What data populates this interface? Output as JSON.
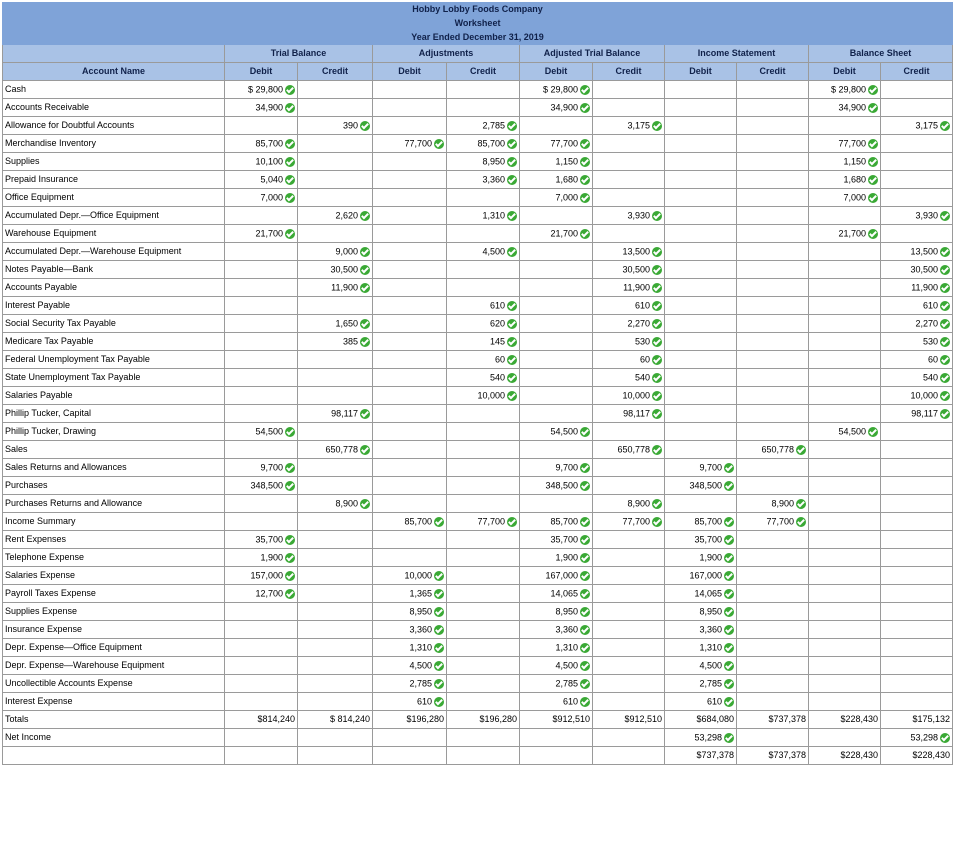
{
  "header": {
    "company": "Hobby Lobby Foods Company",
    "title": "Worksheet",
    "period": "Year Ended December 31, 2019",
    "account_col": "Account Name",
    "groups": [
      "Trial Balance",
      "Adjustments",
      "Adjusted Trial Balance",
      "Income Statement",
      "Balance Sheet"
    ],
    "debit": "Debit",
    "credit": "Credit"
  },
  "rows": [
    {
      "name": "Cash",
      "v": [
        "$ 29,800",
        "",
        "",
        "",
        "$ 29,800",
        "",
        "",
        "",
        "$ 29,800",
        ""
      ]
    },
    {
      "name": "Accounts Receivable",
      "v": [
        "34,900",
        "",
        "",
        "",
        "34,900",
        "",
        "",
        "",
        "34,900",
        ""
      ]
    },
    {
      "name": "Allowance for Doubtful Accounts",
      "v": [
        "",
        "390",
        "",
        "2,785",
        "",
        "3,175",
        "",
        "",
        "",
        "3,175"
      ]
    },
    {
      "name": "Merchandise Inventory",
      "v": [
        "85,700",
        "",
        "77,700",
        "85,700",
        "77,700",
        "",
        "",
        "",
        "77,700",
        ""
      ]
    },
    {
      "name": "Supplies",
      "v": [
        "10,100",
        "",
        "",
        "8,950",
        "1,150",
        "",
        "",
        "",
        "1,150",
        ""
      ]
    },
    {
      "name": "Prepaid Insurance",
      "v": [
        "5,040",
        "",
        "",
        "3,360",
        "1,680",
        "",
        "",
        "",
        "1,680",
        ""
      ]
    },
    {
      "name": "Office Equipment",
      "v": [
        "7,000",
        "",
        "",
        "",
        "7,000",
        "",
        "",
        "",
        "7,000",
        ""
      ]
    },
    {
      "name": "Accumulated Depr.—Office Equipment",
      "tall": true,
      "v": [
        "",
        "2,620",
        "",
        "1,310",
        "",
        "3,930",
        "",
        "",
        "",
        "3,930"
      ]
    },
    {
      "name": "Warehouse Equipment",
      "v": [
        "21,700",
        "",
        "",
        "",
        "21,700",
        "",
        "",
        "",
        "21,700",
        ""
      ]
    },
    {
      "name": "Accumulated Depr.—Warehouse Equipment",
      "tall": true,
      "v": [
        "",
        "9,000",
        "",
        "4,500",
        "",
        "13,500",
        "",
        "",
        "",
        "13,500"
      ]
    },
    {
      "name": "Notes Payable—Bank",
      "v": [
        "",
        "30,500",
        "",
        "",
        "",
        "30,500",
        "",
        "",
        "",
        "30,500"
      ]
    },
    {
      "name": "Accounts Payable",
      "v": [
        "",
        "11,900",
        "",
        "",
        "",
        "11,900",
        "",
        "",
        "",
        "11,900"
      ]
    },
    {
      "name": "Interest Payable",
      "v": [
        "",
        "",
        "",
        "610",
        "",
        "610",
        "",
        "",
        "",
        "610"
      ]
    },
    {
      "name": "Social Security Tax Payable",
      "v": [
        "",
        "1,650",
        "",
        "620",
        "",
        "2,270",
        "",
        "",
        "",
        "2,270"
      ]
    },
    {
      "name": "Medicare Tax Payable",
      "v": [
        "",
        "385",
        "",
        "145",
        "",
        "530",
        "",
        "",
        "",
        "530"
      ]
    },
    {
      "name": "Federal Unemployment Tax Payable",
      "v": [
        "",
        "",
        "",
        "60",
        "",
        "60",
        "",
        "",
        "",
        "60"
      ]
    },
    {
      "name": "State Unemployment Tax Payable",
      "v": [
        "",
        "",
        "",
        "540",
        "",
        "540",
        "",
        "",
        "",
        "540"
      ]
    },
    {
      "name": "Salaries Payable",
      "v": [
        "",
        "",
        "",
        "10,000",
        "",
        "10,000",
        "",
        "",
        "",
        "10,000"
      ]
    },
    {
      "name": "Phillip Tucker, Capital",
      "v": [
        "",
        "98,117",
        "",
        "",
        "",
        "98,117",
        "",
        "",
        "",
        "98,117"
      ]
    },
    {
      "name": "Phillip Tucker, Drawing",
      "v": [
        "54,500",
        "",
        "",
        "",
        "54,500",
        "",
        "",
        "",
        "54,500",
        ""
      ]
    },
    {
      "name": "Sales",
      "v": [
        "",
        "650,778",
        "",
        "",
        "",
        "650,778",
        "",
        "650,778",
        "",
        ""
      ]
    },
    {
      "name": "Sales Returns and Allowances",
      "v": [
        "9,700",
        "",
        "",
        "",
        "9,700",
        "",
        "9,700",
        "",
        "",
        ""
      ]
    },
    {
      "name": "Purchases",
      "v": [
        "348,500",
        "",
        "",
        "",
        "348,500",
        "",
        "348,500",
        "",
        "",
        ""
      ]
    },
    {
      "name": "Purchases Returns and Allowance",
      "v": [
        "",
        "8,900",
        "",
        "",
        "",
        "8,900",
        "",
        "8,900",
        "",
        ""
      ]
    },
    {
      "name": "Income Summary",
      "v": [
        "",
        "",
        "85,700",
        "77,700",
        "85,700",
        "77,700",
        "85,700",
        "77,700",
        "",
        ""
      ]
    },
    {
      "name": "Rent Expenses",
      "v": [
        "35,700",
        "",
        "",
        "",
        "35,700",
        "",
        "35,700",
        "",
        "",
        ""
      ]
    },
    {
      "name": "Telephone Expense",
      "v": [
        "1,900",
        "",
        "",
        "",
        "1,900",
        "",
        "1,900",
        "",
        "",
        ""
      ]
    },
    {
      "name": "Salaries Expense",
      "v": [
        "157,000",
        "",
        "10,000",
        "",
        "167,000",
        "",
        "167,000",
        "",
        "",
        ""
      ]
    },
    {
      "name": "Payroll Taxes Expense",
      "v": [
        "12,700",
        "",
        "1,365",
        "",
        "14,065",
        "",
        "14,065",
        "",
        "",
        ""
      ]
    },
    {
      "name": "Supplies Expense",
      "v": [
        "",
        "",
        "8,950",
        "",
        "8,950",
        "",
        "8,950",
        "",
        "",
        ""
      ]
    },
    {
      "name": "Insurance Expense",
      "v": [
        "",
        "",
        "3,360",
        "",
        "3,360",
        "",
        "3,360",
        "",
        "",
        ""
      ]
    },
    {
      "name": "Depr. Expense—Office Equipment",
      "v": [
        "",
        "",
        "1,310",
        "",
        "1,310",
        "",
        "1,310",
        "",
        "",
        ""
      ]
    },
    {
      "name": "Depr. Expense—Warehouse Equipment",
      "tall": true,
      "v": [
        "",
        "",
        "4,500",
        "",
        "4,500",
        "",
        "4,500",
        "",
        "",
        ""
      ]
    },
    {
      "name": "Uncollectible Accounts Expense",
      "v": [
        "",
        "",
        "2,785",
        "",
        "2,785",
        "",
        "2,785",
        "",
        "",
        ""
      ]
    },
    {
      "name": "Interest Expense",
      "v": [
        "",
        "",
        "610",
        "",
        "610",
        "",
        "610",
        "",
        "",
        ""
      ]
    }
  ],
  "totals": {
    "name": "Totals",
    "v": [
      "$814,240",
      "$ 814,240",
      "$196,280",
      "$196,280",
      "$912,510",
      "$912,510",
      "$684,080",
      "$737,378",
      "$228,430",
      "$175,132"
    ]
  },
  "net_income": {
    "name": "Net Income",
    "v": [
      "",
      "",
      "",
      "",
      "",
      "",
      "53,298",
      "",
      "",
      "53,298"
    ],
    "checked": [
      false,
      false,
      false,
      false,
      false,
      false,
      true,
      false,
      false,
      true
    ]
  },
  "final": {
    "name": "",
    "v": [
      "",
      "",
      "",
      "",
      "",
      "",
      "$737,378",
      "$737,378",
      "$228,430",
      "$228,430"
    ]
  },
  "check_color": "#3aa935",
  "header_color": "#7fa3d8"
}
